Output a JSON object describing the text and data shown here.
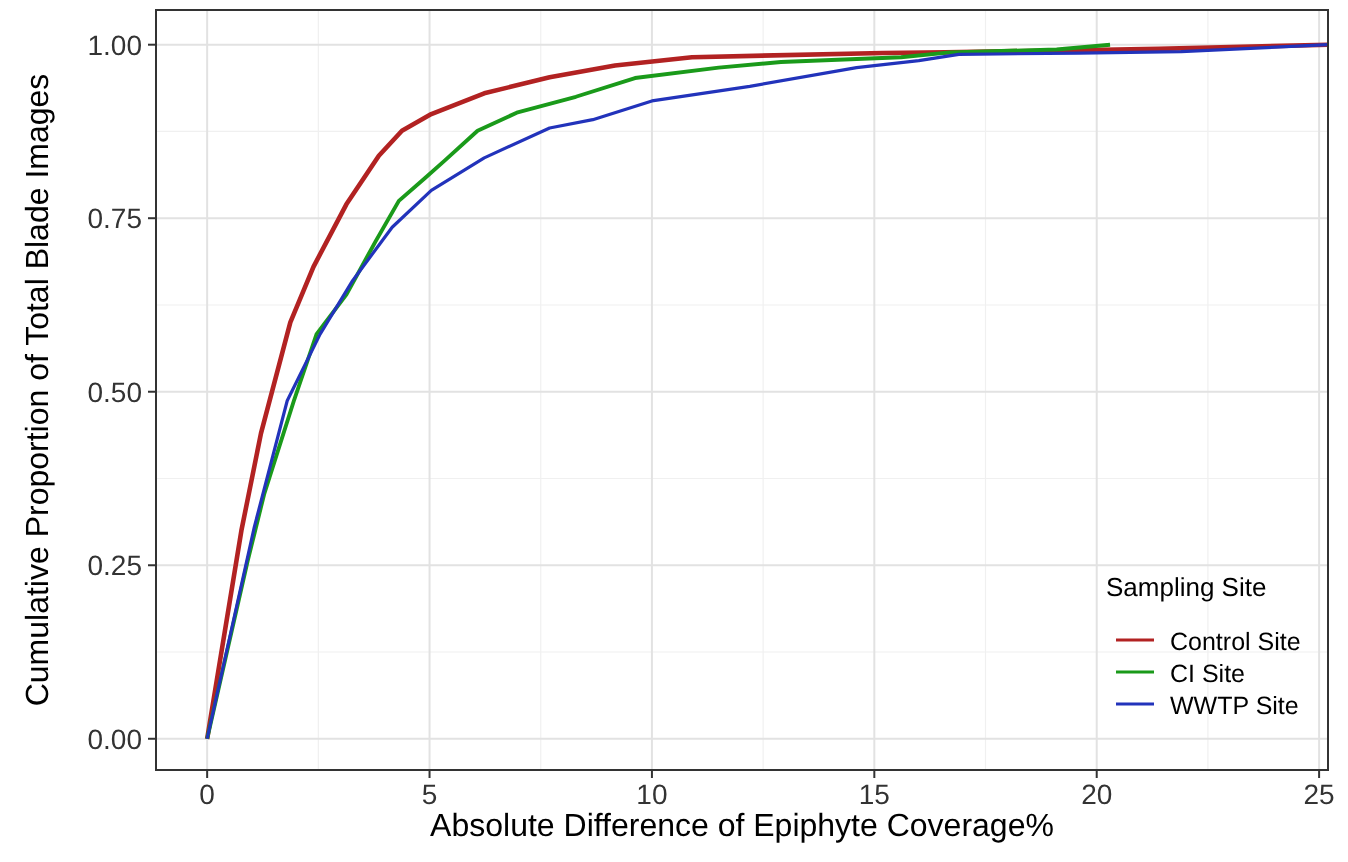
{
  "chart_data": {
    "type": "line",
    "xlabel": "Absolute Difference of Epiphyte Coverage%",
    "ylabel": "Cumulative Proportion of Total Blade Images",
    "legend_title": "Sampling Site",
    "legend": "bottom right",
    "grid": true,
    "xlim": [
      -1.15,
      25.2
    ],
    "ylim": [
      -0.045,
      1.05
    ],
    "xticks": [
      0,
      5,
      10,
      15,
      20,
      25
    ],
    "yticks": [
      {
        "value": 0,
        "label": "0.00"
      },
      {
        "value": 0.25,
        "label": "0.25"
      },
      {
        "value": 0.5,
        "label": "0.50"
      },
      {
        "value": 0.75,
        "label": "0.75"
      },
      {
        "value": 1,
        "label": "1.00"
      }
    ],
    "series": [
      {
        "name": "Control Site",
        "color": "#b22222",
        "x": [
          0,
          0.77,
          1.21,
          1.87,
          2.39,
          3.13,
          3.86,
          4.38,
          5.04,
          6.23,
          7.7,
          9.17,
          10.9,
          15.2,
          16.6,
          21.4,
          25.2
        ],
        "values": [
          0,
          0.3,
          0.44,
          0.6,
          0.68,
          0.77,
          0.84,
          0.876,
          0.9,
          0.93,
          0.953,
          0.97,
          0.982,
          0.988,
          0.989,
          0.994,
          1
        ]
      },
      {
        "name": "CI Site",
        "color": "#1a9a1a",
        "x": [
          0,
          0.91,
          1.28,
          1.95,
          2.46,
          3.13,
          3.79,
          4.31,
          4.9,
          5.34,
          6.08,
          6.96,
          8.29,
          9.62,
          11.5,
          12.9,
          15.6,
          16.7,
          19.1,
          20.3
        ],
        "values": [
          0,
          0.256,
          0.352,
          0.487,
          0.583,
          0.64,
          0.717,
          0.775,
          0.808,
          0.833,
          0.876,
          0.902,
          0.925,
          0.952,
          0.967,
          0.975,
          0.982,
          0.989,
          0.993,
          1
        ]
      },
      {
        "name": "WWTP Site",
        "color": "#2233bb",
        "x": [
          0,
          1.06,
          1.8,
          2.54,
          3.27,
          4.16,
          5.04,
          6.23,
          7.7,
          8.67,
          10,
          12.2,
          14.6,
          16,
          16.9,
          19.6,
          21.9,
          25.2
        ],
        "values": [
          0,
          0.305,
          0.487,
          0.583,
          0.66,
          0.737,
          0.79,
          0.837,
          0.88,
          0.892,
          0.919,
          0.94,
          0.967,
          0.977,
          0.986,
          0.988,
          0.99,
          1
        ]
      }
    ]
  }
}
